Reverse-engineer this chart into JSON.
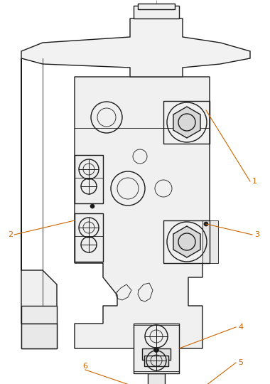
{
  "bg_color": "#ffffff",
  "line_color": "#1a1a1a",
  "annotation_color": "#cc6600",
  "lw_thin": 0.6,
  "lw_med": 1.0,
  "lw_thick": 1.4,
  "figsize": [
    3.8,
    5.4
  ],
  "dpi": 100
}
